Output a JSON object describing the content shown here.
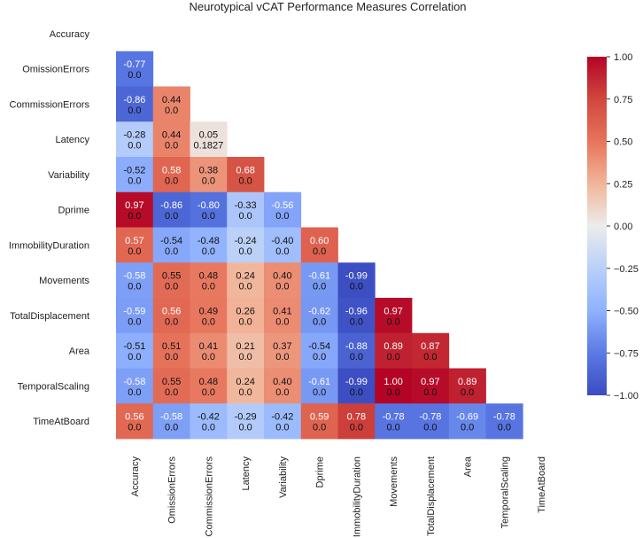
{
  "chart_data": {
    "type": "heatmap",
    "title": "Neurotypical vCAT Performance Measures Correlation",
    "labels": [
      "Accuracy",
      "OmissionErrors",
      "CommissionErrors",
      "Latency",
      "Variability",
      "Dprime",
      "ImmobilityDuration",
      "Movements",
      "TotalDisplacement",
      "Area",
      "TemporalScaling",
      "TimeAtBoard"
    ],
    "mask": "upper-triangle-including-diagonal",
    "colormap": "coolwarm (blue = -1, white = 0, red = 1)",
    "vmin": -1.0,
    "vmax": 1.0,
    "colorbar_ticks": [
      "1.00",
      "0.75",
      "0.50",
      "0.25",
      "0.00",
      "−0.25",
      "−0.50",
      "−0.75",
      "−1.00"
    ],
    "cells": [
      [],
      [
        {
          "r": "-0.77",
          "p": "0.0"
        }
      ],
      [
        {
          "r": "-0.86",
          "p": "0.0"
        },
        {
          "r": "0.44",
          "p": "0.0"
        }
      ],
      [
        {
          "r": "-0.28",
          "p": "0.0"
        },
        {
          "r": "0.44",
          "p": "0.0"
        },
        {
          "r": "0.05",
          "p": "0.1827"
        }
      ],
      [
        {
          "r": "-0.52",
          "p": "0.0"
        },
        {
          "r": "0.58",
          "p": "0.0"
        },
        {
          "r": "0.38",
          "p": "0.0"
        },
        {
          "r": "0.68",
          "p": "0.0"
        }
      ],
      [
        {
          "r": "0.97",
          "p": "0.0"
        },
        {
          "r": "-0.86",
          "p": "0.0"
        },
        {
          "r": "-0.80",
          "p": "0.0"
        },
        {
          "r": "-0.33",
          "p": "0.0"
        },
        {
          "r": "-0.56",
          "p": "0.0"
        }
      ],
      [
        {
          "r": "0.57",
          "p": "0.0"
        },
        {
          "r": "-0.54",
          "p": "0.0"
        },
        {
          "r": "-0.48",
          "p": "0.0"
        },
        {
          "r": "-0.24",
          "p": "0.0"
        },
        {
          "r": "-0.40",
          "p": "0.0"
        },
        {
          "r": "0.60",
          "p": "0.0"
        }
      ],
      [
        {
          "r": "-0.58",
          "p": "0.0"
        },
        {
          "r": "0.55",
          "p": "0.0"
        },
        {
          "r": "0.48",
          "p": "0.0"
        },
        {
          "r": "0.24",
          "p": "0.0"
        },
        {
          "r": "0.40",
          "p": "0.0"
        },
        {
          "r": "-0.61",
          "p": "0.0"
        },
        {
          "r": "-0.99",
          "p": "0.0"
        }
      ],
      [
        {
          "r": "-0.59",
          "p": "0.0"
        },
        {
          "r": "0.56",
          "p": "0.0"
        },
        {
          "r": "0.49",
          "p": "0.0"
        },
        {
          "r": "0.26",
          "p": "0.0"
        },
        {
          "r": "0.41",
          "p": "0.0"
        },
        {
          "r": "-0.62",
          "p": "0.0"
        },
        {
          "r": "-0.96",
          "p": "0.0"
        },
        {
          "r": "0.97",
          "p": "0.0"
        }
      ],
      [
        {
          "r": "-0.51",
          "p": "0.0"
        },
        {
          "r": "0.51",
          "p": "0.0"
        },
        {
          "r": "0.41",
          "p": "0.0"
        },
        {
          "r": "0.21",
          "p": "0.0"
        },
        {
          "r": "0.37",
          "p": "0.0"
        },
        {
          "r": "-0.54",
          "p": "0.0"
        },
        {
          "r": "-0.88",
          "p": "0.0"
        },
        {
          "r": "0.89",
          "p": "0.0"
        },
        {
          "r": "0.87",
          "p": "0.0"
        }
      ],
      [
        {
          "r": "-0.58",
          "p": "0.0"
        },
        {
          "r": "0.55",
          "p": "0.0"
        },
        {
          "r": "0.48",
          "p": "0.0"
        },
        {
          "r": "0.24",
          "p": "0.0"
        },
        {
          "r": "0.40",
          "p": "0.0"
        },
        {
          "r": "-0.61",
          "p": "0.0"
        },
        {
          "r": "-0.99",
          "p": "0.0"
        },
        {
          "r": "1.00",
          "p": "0.0"
        },
        {
          "r": "0.97",
          "p": "0.0"
        },
        {
          "r": "0.89",
          "p": "0.0"
        }
      ],
      [
        {
          "r": "0.56",
          "p": "0.0"
        },
        {
          "r": "-0.58",
          "p": "0.0"
        },
        {
          "r": "-0.42",
          "p": "0.0"
        },
        {
          "r": "-0.29",
          "p": "0.0"
        },
        {
          "r": "-0.42",
          "p": "0.0"
        },
        {
          "r": "0.59",
          "p": "0.0"
        },
        {
          "r": "0.78",
          "p": "0.0"
        },
        {
          "r": "-0.78",
          "p": "0.0"
        },
        {
          "r": "-0.78",
          "p": "0.0"
        },
        {
          "r": "-0.69",
          "p": "0.0"
        },
        {
          "r": "-0.78",
          "p": "0.0"
        }
      ]
    ]
  }
}
